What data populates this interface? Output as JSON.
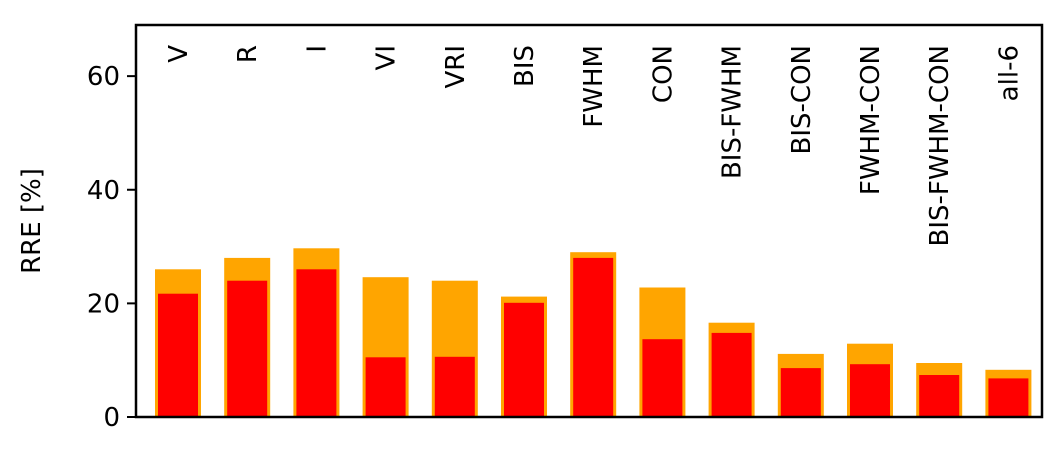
{
  "chart_data": {
    "type": "bar",
    "title": "",
    "xlabel": "",
    "ylabel": "RRE [%]",
    "ylim": [
      0,
      69
    ],
    "yticks": [
      0,
      20,
      40,
      60
    ],
    "grid": false,
    "legend": "none",
    "categories": [
      "V",
      "R",
      "I",
      "VI",
      "VRI",
      "BIS",
      "FWHM",
      "CON",
      "BIS-FWHM",
      "BIS-CON",
      "FWHM-CON",
      "BIS-FWHM-CON",
      "all-6"
    ],
    "series": [
      {
        "color": "#FFA500",
        "values": [
          26.0,
          28.0,
          29.7,
          24.6,
          24.0,
          21.2,
          29.0,
          22.8,
          16.6,
          11.1,
          12.9,
          9.5,
          8.3
        ]
      },
      {
        "color": "#FF0000",
        "values": [
          21.7,
          24.0,
          26.0,
          10.5,
          10.6,
          20.1,
          28.0,
          13.7,
          14.8,
          8.6,
          9.3,
          7.4,
          6.8
        ]
      }
    ]
  }
}
